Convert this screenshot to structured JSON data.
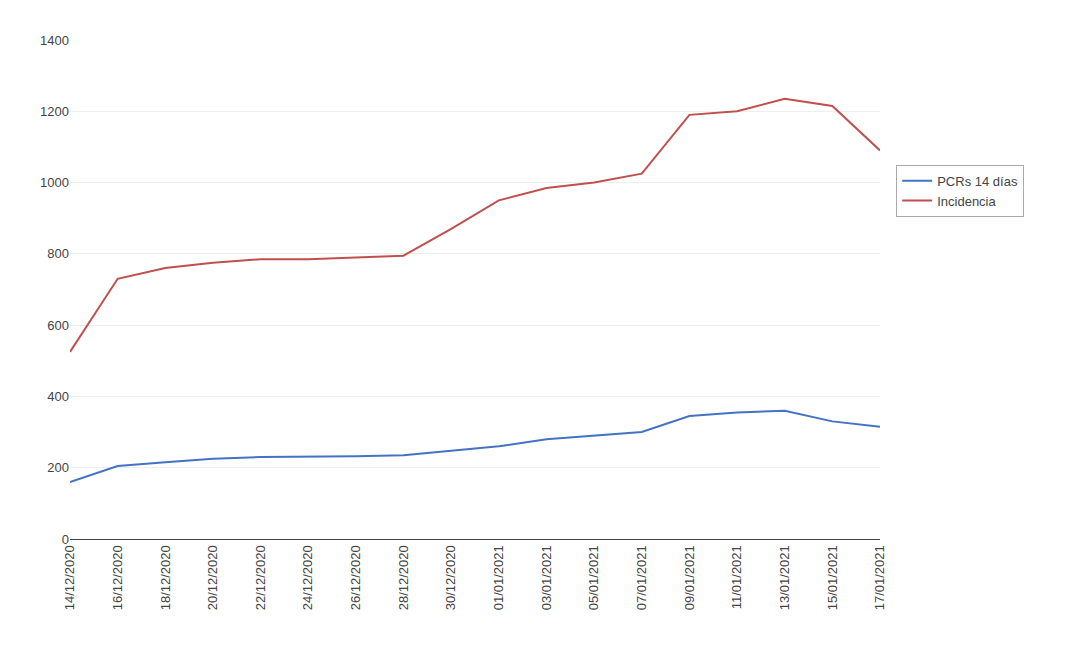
{
  "chart_data": {
    "type": "line",
    "categories": [
      "14/12/2020",
      "16/12/2020",
      "18/12/2020",
      "20/12/2020",
      "22/12/2020",
      "24/12/2020",
      "26/12/2020",
      "28/12/2020",
      "30/12/2020",
      "01/01/2021",
      "03/01/2021",
      "05/01/2021",
      "07/01/2021",
      "09/01/2021",
      "11/01/2021",
      "13/01/2021",
      "15/01/2021",
      "17/01/2021"
    ],
    "series": [
      {
        "name": "PCRs 14 días",
        "color": "#4472C4",
        "values": [
          160,
          205,
          215,
          225,
          230,
          230,
          232,
          235,
          248,
          260,
          280,
          290,
          300,
          345,
          355,
          360,
          330,
          315
        ]
      },
      {
        "name": "Incidencia",
        "color": "#C0504D",
        "values": [
          525,
          730,
          760,
          775,
          785,
          785,
          790,
          795,
          870,
          950,
          985,
          1000,
          1025,
          1190,
          1200,
          1235,
          1215,
          1090
        ]
      }
    ],
    "ylim": [
      0,
      1400
    ],
    "yticks": [
      0,
      200,
      400,
      600,
      800,
      1000,
      1200,
      1400
    ],
    "grid": true,
    "legend": "right"
  }
}
